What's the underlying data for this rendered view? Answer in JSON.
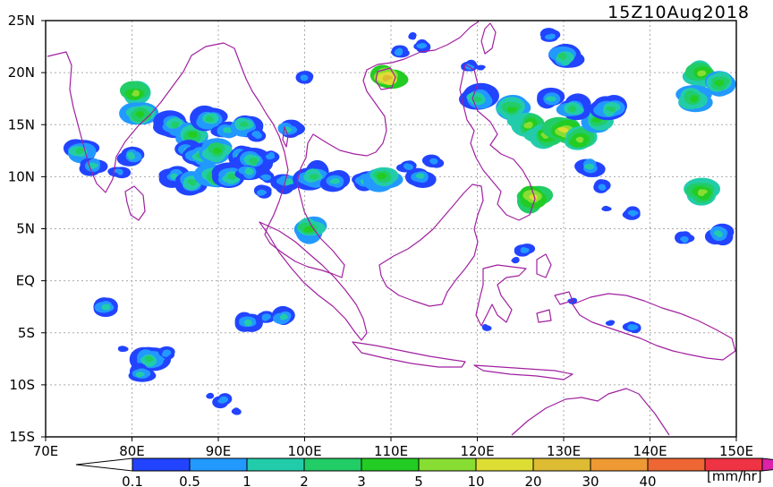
{
  "title": "15Z10Aug2018",
  "map": {
    "lon_range": [
      70,
      150
    ],
    "lat_range": [
      -15,
      25
    ],
    "grid": true,
    "lat_labels": [
      "25N",
      "20N",
      "15N",
      "10N",
      "5N",
      "EQ",
      "5S",
      "10S",
      "15S"
    ],
    "lon_labels": [
      "70E",
      "80E",
      "90E",
      "100E",
      "110E",
      "120E",
      "130E",
      "140E",
      "150E"
    ],
    "coast_color": "#a020a0",
    "rain_cells": [
      {
        "lon": 80.5,
        "lat": 18.0,
        "level": 6
      },
      {
        "lon": 81.0,
        "lat": 16.0,
        "level": 5
      },
      {
        "lon": 85.0,
        "lat": 15.0,
        "level": 4
      },
      {
        "lon": 87.0,
        "lat": 14.0,
        "level": 5
      },
      {
        "lon": 89.0,
        "lat": 15.5,
        "level": 4
      },
      {
        "lon": 91.0,
        "lat": 14.5,
        "level": 3
      },
      {
        "lon": 93.0,
        "lat": 15.0,
        "level": 4
      },
      {
        "lon": 94.5,
        "lat": 14.0,
        "level": 2
      },
      {
        "lon": 86.5,
        "lat": 12.5,
        "level": 3
      },
      {
        "lon": 88.0,
        "lat": 12.0,
        "level": 4
      },
      {
        "lon": 90.0,
        "lat": 12.5,
        "level": 5
      },
      {
        "lon": 92.5,
        "lat": 12.0,
        "level": 3
      },
      {
        "lon": 94.0,
        "lat": 11.5,
        "level": 4
      },
      {
        "lon": 96.0,
        "lat": 12.0,
        "level": 2
      },
      {
        "lon": 85.0,
        "lat": 10.0,
        "level": 3
      },
      {
        "lon": 87.0,
        "lat": 9.5,
        "level": 4
      },
      {
        "lon": 89.5,
        "lat": 10.0,
        "level": 5
      },
      {
        "lon": 91.5,
        "lat": 10.0,
        "level": 4
      },
      {
        "lon": 93.5,
        "lat": 10.5,
        "level": 3
      },
      {
        "lon": 95.5,
        "lat": 10.0,
        "level": 2
      },
      {
        "lon": 98.0,
        "lat": 9.5,
        "level": 3
      },
      {
        "lon": 101.0,
        "lat": 10.0,
        "level": 4
      },
      {
        "lon": 103.5,
        "lat": 9.5,
        "level": 3
      },
      {
        "lon": 107.0,
        "lat": 9.5,
        "level": 3
      },
      {
        "lon": 109.0,
        "lat": 10.0,
        "level": 5
      },
      {
        "lon": 95.0,
        "lat": 8.5,
        "level": 2
      },
      {
        "lon": 74.0,
        "lat": 12.5,
        "level": 4
      },
      {
        "lon": 75.5,
        "lat": 11.0,
        "level": 3
      },
      {
        "lon": 78.5,
        "lat": 10.5,
        "level": 2
      },
      {
        "lon": 80.0,
        "lat": 12.0,
        "level": 3
      },
      {
        "lon": 98.0,
        "lat": 14.5,
        "level": 3
      },
      {
        "lon": 100.0,
        "lat": 19.5,
        "level": 2
      },
      {
        "lon": 109.5,
        "lat": 19.5,
        "level": 8
      },
      {
        "lon": 111.0,
        "lat": 22.0,
        "level": 2
      },
      {
        "lon": 112.5,
        "lat": 23.5,
        "level": 1
      },
      {
        "lon": 113.5,
        "lat": 22.5,
        "level": 2
      },
      {
        "lon": 119.0,
        "lat": 20.5,
        "level": 2
      },
      {
        "lon": 120.0,
        "lat": 17.5,
        "level": 4
      },
      {
        "lon": 124.0,
        "lat": 16.5,
        "level": 5
      },
      {
        "lon": 126.0,
        "lat": 15.0,
        "level": 6
      },
      {
        "lon": 128.0,
        "lat": 14.0,
        "level": 6
      },
      {
        "lon": 130.0,
        "lat": 14.5,
        "level": 7
      },
      {
        "lon": 132.0,
        "lat": 13.5,
        "level": 6
      },
      {
        "lon": 134.0,
        "lat": 15.5,
        "level": 5
      },
      {
        "lon": 135.5,
        "lat": 16.5,
        "level": 4
      },
      {
        "lon": 131.0,
        "lat": 16.5,
        "level": 4
      },
      {
        "lon": 128.5,
        "lat": 17.5,
        "level": 3
      },
      {
        "lon": 130.0,
        "lat": 21.5,
        "level": 4
      },
      {
        "lon": 128.5,
        "lat": 23.5,
        "level": 2
      },
      {
        "lon": 133.0,
        "lat": 11.0,
        "level": 3
      },
      {
        "lon": 134.5,
        "lat": 9.0,
        "level": 2
      },
      {
        "lon": 135.0,
        "lat": 7.0,
        "level": 1
      },
      {
        "lon": 138.0,
        "lat": 6.5,
        "level": 2
      },
      {
        "lon": 146.0,
        "lat": 20.0,
        "level": 6
      },
      {
        "lon": 148.0,
        "lat": 19.0,
        "level": 5
      },
      {
        "lon": 145.0,
        "lat": 17.5,
        "level": 5
      },
      {
        "lon": 146.0,
        "lat": 8.5,
        "level": 6
      },
      {
        "lon": 144.0,
        "lat": 4.0,
        "level": 2
      },
      {
        "lon": 148.0,
        "lat": 4.5,
        "level": 3
      },
      {
        "lon": 125.5,
        "lat": 3.0,
        "level": 2
      },
      {
        "lon": 124.5,
        "lat": 2.0,
        "level": 1
      },
      {
        "lon": 126.5,
        "lat": 8.0,
        "level": 7
      },
      {
        "lon": 115.0,
        "lat": 11.5,
        "level": 2
      },
      {
        "lon": 113.5,
        "lat": 10.0,
        "level": 3
      },
      {
        "lon": 112.0,
        "lat": 11.0,
        "level": 2
      },
      {
        "lon": 82.0,
        "lat": -7.5,
        "level": 4
      },
      {
        "lon": 81.0,
        "lat": -9.0,
        "level": 3
      },
      {
        "lon": 79.0,
        "lat": -6.5,
        "level": 1
      },
      {
        "lon": 84.0,
        "lat": -7.0,
        "level": 2
      },
      {
        "lon": 77.0,
        "lat": -2.5,
        "level": 3
      },
      {
        "lon": 90.5,
        "lat": -11.5,
        "level": 2
      },
      {
        "lon": 92.0,
        "lat": -12.5,
        "level": 1
      },
      {
        "lon": 89.0,
        "lat": -11.0,
        "level": 1
      },
      {
        "lon": 93.5,
        "lat": -4.0,
        "level": 3
      },
      {
        "lon": 95.5,
        "lat": -3.5,
        "level": 2
      },
      {
        "lon": 97.5,
        "lat": -3.5,
        "level": 3
      },
      {
        "lon": 100.5,
        "lat": 5.0,
        "level": 5
      },
      {
        "lon": 135.5,
        "lat": -4.0,
        "level": 1
      },
      {
        "lon": 138.0,
        "lat": -4.5,
        "level": 2
      },
      {
        "lon": 131.0,
        "lat": -2.0,
        "level": 1
      },
      {
        "lon": 121.0,
        "lat": -4.5,
        "level": 1
      },
      {
        "lon": 120.5,
        "lat": 20.5,
        "level": 1
      }
    ]
  },
  "colorbar": {
    "colors": [
      "#ffffff",
      "#2244ff",
      "#2299ff",
      "#22ccaa",
      "#22cc66",
      "#22cc22",
      "#88dd33",
      "#dddd33",
      "#ddbb33",
      "#ee9933",
      "#ee6633",
      "#ee3344",
      "#dd22aa"
    ],
    "labels": [
      "0.1",
      "0.5",
      "1",
      "2",
      "3",
      "5",
      "10",
      "20",
      "30",
      "40"
    ],
    "unit": "[mm/hr]"
  }
}
